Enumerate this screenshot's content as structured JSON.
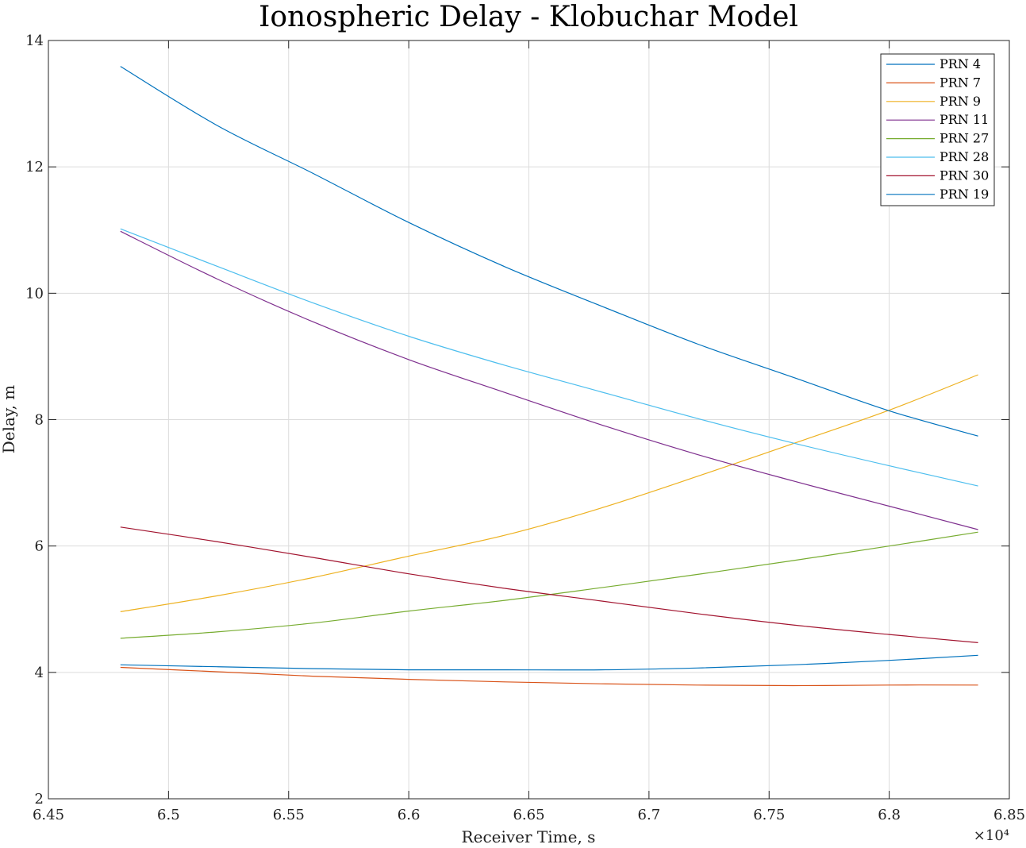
{
  "chart_data": {
    "type": "line",
    "title": "Ionospheric Delay - Klobuchar Model",
    "xlabel": "Receiver Time, s",
    "ylabel": "Delay, m",
    "x_exponent_label": "×10⁴",
    "xlim": [
      64500,
      68500
    ],
    "ylim": [
      2,
      14
    ],
    "xticks": [
      64500,
      65000,
      65500,
      66000,
      66500,
      67000,
      67500,
      68000,
      68500
    ],
    "xtick_labels": [
      "6.45",
      "6.5",
      "6.55",
      "6.6",
      "6.65",
      "6.7",
      "6.75",
      "6.8",
      "6.85"
    ],
    "yticks": [
      2,
      4,
      6,
      8,
      10,
      12,
      14
    ],
    "ytick_labels": [
      "2",
      "4",
      "6",
      "8",
      "10",
      "12",
      "14"
    ],
    "grid": true,
    "legend_position": "top-right",
    "x": [
      64800,
      65200,
      65600,
      66000,
      66400,
      66800,
      67200,
      67600,
      68000,
      68370
    ],
    "series": [
      {
        "name": "PRN 4",
        "color": "#0072BD",
        "values": [
          4.12,
          4.09,
          4.06,
          4.04,
          4.04,
          4.04,
          4.07,
          4.12,
          4.19,
          4.27
        ]
      },
      {
        "name": "PRN 7",
        "color": "#D95319",
        "values": [
          4.08,
          4.01,
          3.94,
          3.89,
          3.85,
          3.82,
          3.8,
          3.79,
          3.8,
          3.8
        ]
      },
      {
        "name": "PRN 9",
        "color": "#EDB120",
        "values": [
          4.96,
          5.21,
          5.5,
          5.84,
          6.17,
          6.6,
          7.1,
          7.62,
          8.15,
          8.71
        ]
      },
      {
        "name": "PRN 11",
        "color": "#7E2F8E",
        "values": [
          10.98,
          10.23,
          9.55,
          8.95,
          8.43,
          7.92,
          7.45,
          7.03,
          6.63,
          6.26
        ]
      },
      {
        "name": "PRN 27",
        "color": "#77AC30",
        "values": [
          4.54,
          4.64,
          4.78,
          4.97,
          5.14,
          5.34,
          5.55,
          5.77,
          6.0,
          6.22
        ]
      },
      {
        "name": "PRN 28",
        "color": "#4DBEEE",
        "values": [
          11.02,
          10.43,
          9.85,
          9.32,
          8.86,
          8.44,
          8.02,
          7.63,
          7.27,
          6.95
        ]
      },
      {
        "name": "PRN 30",
        "color": "#A2142F",
        "values": [
          6.3,
          6.07,
          5.82,
          5.56,
          5.33,
          5.13,
          4.93,
          4.75,
          4.6,
          4.47
        ]
      },
      {
        "name": "PRN 19",
        "color": "#0072BD",
        "values": [
          13.59,
          12.66,
          11.9,
          11.12,
          10.42,
          9.8,
          9.2,
          8.67,
          8.14,
          7.74
        ]
      }
    ]
  }
}
